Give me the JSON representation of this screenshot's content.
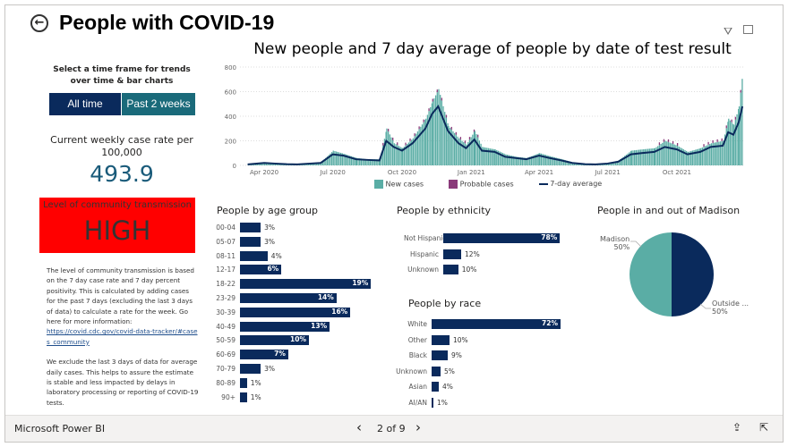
{
  "header": {
    "title": "People with COVID-19",
    "back_icon": "back-arrow-icon",
    "filter_icon": "filter-icon",
    "expand_icon": "focus-mode-icon"
  },
  "controls": {
    "prompt": "Select a time frame for trends over time & bar charts",
    "buttons": [
      {
        "label": "All time",
        "active": true
      },
      {
        "label": "Past 2 weeks",
        "active": false
      }
    ]
  },
  "rate": {
    "label": "Current weekly case rate per 100,000",
    "value": "493.9"
  },
  "transmission": {
    "label": "Level of community transmission",
    "value": "HIGH",
    "color": "#ff0000"
  },
  "notes": {
    "p1": "The level of community transmission is based on the 7 day case rate and 7 day percent positivity. This is calculated by adding cases for the past 7 days (excluding the last 3 days of data) to calculate a rate for the week. Go here for more information:",
    "link": "https://covid.cdc.gov/covid-data-tracker/#cases_community",
    "p2": "We exclude the last 3 days of data for average daily cases. This helps to assure the estimate is stable and less impacted by delays in laboratory processing or reporting of COVID-19 tests."
  },
  "chart_data": [
    {
      "type": "bar+line",
      "title": "New people and 7 day average of people by date of test result",
      "ylim": [
        0,
        800
      ],
      "yticks": [
        "0",
        "200",
        "400",
        "600",
        "800"
      ],
      "xticks": [
        "Apr 2020",
        "Jul 2020",
        "Oct 2020",
        "Jan 2021",
        "Apr 2021",
        "Jul 2021",
        "Oct 2021"
      ],
      "grid": true,
      "legend_position": "bottom",
      "series": [
        {
          "name": "New cases",
          "color": "#5aada5"
        },
        {
          "name": "Probable cases",
          "color": "#8a3a7a"
        },
        {
          "name": "7-day average",
          "color": "#0a2a5c"
        }
      ],
      "dates": [
        "2020-03-10",
        "2020-04-01",
        "2020-04-15",
        "2020-05-01",
        "2020-05-15",
        "2020-06-01",
        "2020-06-15",
        "2020-07-01",
        "2020-07-15",
        "2020-08-01",
        "2020-08-15",
        "2020-09-01",
        "2020-09-10",
        "2020-09-20",
        "2020-10-01",
        "2020-10-15",
        "2020-11-01",
        "2020-11-10",
        "2020-11-18",
        "2020-12-01",
        "2020-12-15",
        "2020-12-25",
        "2021-01-05",
        "2021-01-15",
        "2021-02-01",
        "2021-02-15",
        "2021-03-01",
        "2021-03-15",
        "2021-04-01",
        "2021-04-15",
        "2021-05-01",
        "2021-05-15",
        "2021-06-01",
        "2021-06-15",
        "2021-07-01",
        "2021-07-15",
        "2021-08-01",
        "2021-08-15",
        "2021-09-01",
        "2021-09-15",
        "2021-10-01",
        "2021-10-15",
        "2021-11-01",
        "2021-11-15",
        "2021-12-01",
        "2021-12-08",
        "2021-12-15",
        "2021-12-22",
        "2021-12-27"
      ],
      "new_cases": [
        8,
        25,
        18,
        12,
        10,
        18,
        25,
        120,
        95,
        60,
        50,
        50,
        300,
        180,
        140,
        220,
        380,
        520,
        620,
        320,
        220,
        170,
        280,
        150,
        130,
        90,
        70,
        60,
        100,
        75,
        50,
        25,
        12,
        10,
        18,
        40,
        120,
        130,
        140,
        200,
        160,
        110,
        140,
        180,
        200,
        380,
        330,
        480,
        760
      ],
      "seven_day_average": [
        8,
        20,
        15,
        10,
        8,
        15,
        20,
        90,
        80,
        50,
        45,
        40,
        200,
        150,
        120,
        180,
        300,
        420,
        480,
        280,
        180,
        140,
        210,
        120,
        110,
        70,
        60,
        50,
        80,
        60,
        40,
        20,
        10,
        8,
        15,
        30,
        90,
        100,
        110,
        150,
        130,
        90,
        110,
        150,
        160,
        270,
        250,
        350,
        480
      ]
    },
    {
      "type": "bar",
      "title": "People by age group",
      "categories": [
        "00-04",
        "05-07",
        "08-11",
        "12-17",
        "18-22",
        "23-29",
        "30-39",
        "40-49",
        "50-59",
        "60-69",
        "70-79",
        "80-89",
        "90+"
      ],
      "values": [
        3,
        3,
        4,
        6,
        19,
        14,
        16,
        13,
        10,
        7,
        3,
        1,
        1
      ]
    },
    {
      "type": "bar",
      "title": "People by ethnicity",
      "categories": [
        "Not Hispanic",
        "Hispanic",
        "Unknown"
      ],
      "values": [
        78,
        12,
        10
      ]
    },
    {
      "type": "bar",
      "title": "People by race",
      "categories": [
        "White",
        "Other",
        "Black",
        "Unknown",
        "Asian",
        "AI/AN"
      ],
      "values": [
        72,
        10,
        9,
        5,
        4,
        1
      ]
    },
    {
      "type": "pie",
      "title": "People in and out of Madison",
      "labels": [
        "Madison",
        "Outside ..."
      ],
      "values": [
        50,
        50
      ],
      "colors": [
        "#5aada5",
        "#0a2a5c"
      ]
    }
  ],
  "footer": {
    "brand": "Microsoft Power BI",
    "page": "2 of 9"
  }
}
